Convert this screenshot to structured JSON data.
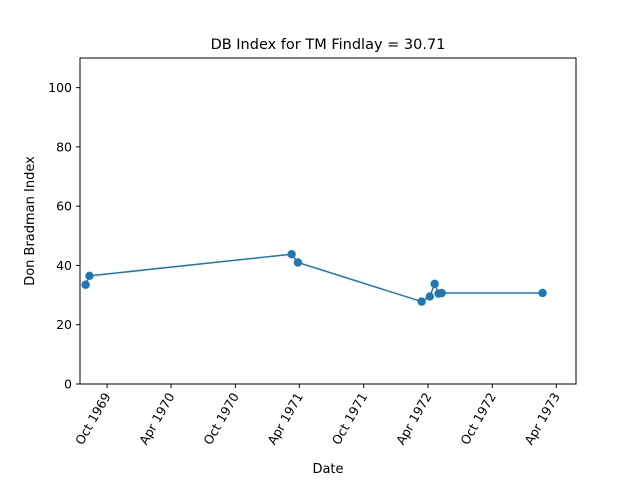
{
  "chart_data": {
    "type": "line",
    "title": "DB Index for TM Findlay = 30.71",
    "xlabel": "Date",
    "ylabel": "Don Bradman Index",
    "ylim": [
      0,
      110
    ],
    "xlim": [
      "1969-07-16",
      "1973-05-27"
    ],
    "grid": false,
    "x_ticks": [
      {
        "date": "1969-10-01",
        "label": "Oct 1969"
      },
      {
        "date": "1970-04-01",
        "label": "Apr 1970"
      },
      {
        "date": "1970-10-01",
        "label": "Oct 1970"
      },
      {
        "date": "1971-04-01",
        "label": "Apr 1971"
      },
      {
        "date": "1971-10-01",
        "label": "Oct 1971"
      },
      {
        "date": "1972-04-01",
        "label": "Apr 1972"
      },
      {
        "date": "1972-10-01",
        "label": "Oct 1972"
      },
      {
        "date": "1973-04-01",
        "label": "Apr 1973"
      }
    ],
    "y_ticks": [
      0,
      20,
      40,
      60,
      80,
      100
    ],
    "series": [
      {
        "color": "#1f77b4",
        "x": [
          "1969-08-01",
          "1969-08-12",
          "1971-03-10",
          "1971-03-28",
          "1972-03-14",
          "1972-04-06",
          "1972-04-20",
          "1972-05-01",
          "1972-05-10",
          "1973-02-21"
        ],
        "values": [
          33.5,
          36.5,
          43.8,
          41.0,
          27.8,
          29.5,
          33.8,
          30.5,
          30.7,
          30.71
        ]
      }
    ]
  }
}
